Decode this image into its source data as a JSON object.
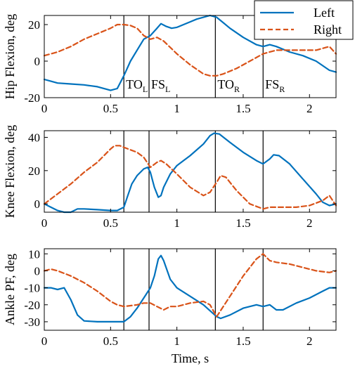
{
  "colors": {
    "left": "#0072BD",
    "right": "#D95319",
    "event_line": "#000000",
    "axes": "#000000"
  },
  "chart_data": [
    {
      "type": "line",
      "ylabel": "Hip Flexion, deg",
      "xlim": [
        0,
        2.2
      ],
      "ylim": [
        -20,
        25
      ],
      "xticks": [
        0,
        0.5,
        1,
        1.5,
        2
      ],
      "yticks": [
        -20,
        0,
        20
      ],
      "events": [
        {
          "x": 0.6,
          "label": "TO",
          "sub": "L"
        },
        {
          "x": 0.79,
          "label": "FS",
          "sub": "L"
        },
        {
          "x": 1.29,
          "label": "TO",
          "sub": "R"
        },
        {
          "x": 1.65,
          "label": "FS",
          "sub": "R"
        }
      ],
      "legend": {
        "placement": "top-right",
        "entries": [
          "Left",
          "Right"
        ]
      },
      "series": [
        {
          "name": "Left",
          "style": "solid",
          "points": [
            [
              0,
              -10
            ],
            [
              0.05,
              -11
            ],
            [
              0.1,
              -12
            ],
            [
              0.2,
              -12.5
            ],
            [
              0.3,
              -13
            ],
            [
              0.4,
              -14
            ],
            [
              0.5,
              -16
            ],
            [
              0.55,
              -15
            ],
            [
              0.6,
              -8
            ],
            [
              0.65,
              0
            ],
            [
              0.7,
              6
            ],
            [
              0.75,
              12
            ],
            [
              0.8,
              14
            ],
            [
              0.85,
              18
            ],
            [
              0.88,
              20.5
            ],
            [
              0.92,
              19
            ],
            [
              0.96,
              18
            ],
            [
              1.0,
              18.5
            ],
            [
              1.05,
              20
            ],
            [
              1.1,
              21.5
            ],
            [
              1.15,
              23
            ],
            [
              1.2,
              24
            ],
            [
              1.25,
              25
            ],
            [
              1.3,
              24
            ],
            [
              1.35,
              21
            ],
            [
              1.4,
              18
            ],
            [
              1.5,
              13
            ],
            [
              1.6,
              9
            ],
            [
              1.65,
              8
            ],
            [
              1.7,
              9
            ],
            [
              1.75,
              8
            ],
            [
              1.85,
              5
            ],
            [
              1.95,
              3
            ],
            [
              2.05,
              0
            ],
            [
              2.15,
              -5
            ],
            [
              2.2,
              -6
            ]
          ]
        },
        {
          "name": "Right",
          "style": "dashed",
          "points": [
            [
              0,
              3
            ],
            [
              0.05,
              4
            ],
            [
              0.1,
              5
            ],
            [
              0.2,
              8
            ],
            [
              0.3,
              12
            ],
            [
              0.4,
              15
            ],
            [
              0.5,
              18
            ],
            [
              0.55,
              20
            ],
            [
              0.6,
              20
            ],
            [
              0.65,
              19.5
            ],
            [
              0.7,
              18
            ],
            [
              0.75,
              14
            ],
            [
              0.8,
              12
            ],
            [
              0.85,
              13
            ],
            [
              0.9,
              11
            ],
            [
              1.0,
              4
            ],
            [
              1.1,
              -2
            ],
            [
              1.2,
              -7
            ],
            [
              1.25,
              -8
            ],
            [
              1.3,
              -8
            ],
            [
              1.35,
              -7
            ],
            [
              1.45,
              -4
            ],
            [
              1.55,
              0
            ],
            [
              1.65,
              4
            ],
            [
              1.75,
              6
            ],
            [
              1.85,
              6
            ],
            [
              1.95,
              6
            ],
            [
              2.05,
              6
            ],
            [
              2.1,
              7
            ],
            [
              2.15,
              8
            ],
            [
              2.2,
              4
            ]
          ]
        }
      ]
    },
    {
      "type": "line",
      "ylabel": "Knee Flexion, deg",
      "xlim": [
        0,
        2.2
      ],
      "ylim": [
        -5,
        44
      ],
      "xticks": [
        0,
        0.5,
        1,
        1.5,
        2
      ],
      "yticks": [
        0,
        20,
        40
      ],
      "events": [
        {
          "x": 0.6
        },
        {
          "x": 0.79
        },
        {
          "x": 1.29
        },
        {
          "x": 1.65
        }
      ],
      "series": [
        {
          "name": "Left",
          "style": "solid",
          "points": [
            [
              0,
              0
            ],
            [
              0.05,
              -2
            ],
            [
              0.1,
              -4
            ],
            [
              0.15,
              -5
            ],
            [
              0.2,
              -5
            ],
            [
              0.25,
              -3
            ],
            [
              0.3,
              -3
            ],
            [
              0.4,
              -3.5
            ],
            [
              0.5,
              -4
            ],
            [
              0.55,
              -4
            ],
            [
              0.6,
              -2
            ],
            [
              0.63,
              5
            ],
            [
              0.66,
              12
            ],
            [
              0.7,
              17
            ],
            [
              0.75,
              21
            ],
            [
              0.78,
              22
            ],
            [
              0.8,
              19
            ],
            [
              0.83,
              10
            ],
            [
              0.86,
              4
            ],
            [
              0.88,
              5
            ],
            [
              0.9,
              10
            ],
            [
              0.95,
              18
            ],
            [
              1.0,
              23
            ],
            [
              1.1,
              29
            ],
            [
              1.2,
              36
            ],
            [
              1.25,
              41
            ],
            [
              1.28,
              42.5
            ],
            [
              1.32,
              42
            ],
            [
              1.4,
              37
            ],
            [
              1.5,
              31
            ],
            [
              1.6,
              26
            ],
            [
              1.65,
              24
            ],
            [
              1.7,
              27
            ],
            [
              1.73,
              29.5
            ],
            [
              1.77,
              29
            ],
            [
              1.85,
              24
            ],
            [
              1.95,
              15
            ],
            [
              2.05,
              6
            ],
            [
              2.1,
              1
            ],
            [
              2.15,
              -1
            ],
            [
              2.2,
              0
            ]
          ]
        },
        {
          "name": "Right",
          "style": "dashed",
          "points": [
            [
              0,
              0
            ],
            [
              0.05,
              3
            ],
            [
              0.1,
              6
            ],
            [
              0.2,
              12
            ],
            [
              0.3,
              19
            ],
            [
              0.4,
              25
            ],
            [
              0.45,
              29
            ],
            [
              0.5,
              33
            ],
            [
              0.53,
              35
            ],
            [
              0.57,
              35
            ],
            [
              0.6,
              34
            ],
            [
              0.7,
              31
            ],
            [
              0.75,
              28
            ],
            [
              0.8,
              22
            ],
            [
              0.85,
              25
            ],
            [
              0.88,
              26
            ],
            [
              0.92,
              24
            ],
            [
              1.0,
              18
            ],
            [
              1.1,
              10
            ],
            [
              1.2,
              5
            ],
            [
              1.25,
              7
            ],
            [
              1.3,
              13
            ],
            [
              1.33,
              17
            ],
            [
              1.37,
              16
            ],
            [
              1.45,
              8
            ],
            [
              1.55,
              0
            ],
            [
              1.65,
              -3
            ],
            [
              1.7,
              -2
            ],
            [
              1.8,
              -2
            ],
            [
              1.9,
              -2
            ],
            [
              2.0,
              -1
            ],
            [
              2.1,
              2
            ],
            [
              2.15,
              5
            ],
            [
              2.2,
              -1
            ]
          ]
        }
      ]
    },
    {
      "type": "line",
      "ylabel": "Ankle PF, deg",
      "xlabel": "Time, s",
      "xlim": [
        0,
        2.2
      ],
      "ylim": [
        -35,
        13
      ],
      "xticks": [
        0,
        0.5,
        1,
        1.5,
        2
      ],
      "yticks": [
        -30,
        -20,
        -10,
        0,
        10
      ],
      "events": [
        {
          "x": 0.6
        },
        {
          "x": 0.79
        },
        {
          "x": 1.29
        },
        {
          "x": 1.65
        }
      ],
      "series": [
        {
          "name": "Left",
          "style": "solid",
          "points": [
            [
              0,
              -10
            ],
            [
              0.05,
              -10
            ],
            [
              0.1,
              -11
            ],
            [
              0.15,
              -10
            ],
            [
              0.2,
              -17
            ],
            [
              0.25,
              -26
            ],
            [
              0.3,
              -29.5
            ],
            [
              0.4,
              -30
            ],
            [
              0.5,
              -30
            ],
            [
              0.6,
              -30
            ],
            [
              0.65,
              -27
            ],
            [
              0.7,
              -22
            ],
            [
              0.75,
              -16
            ],
            [
              0.8,
              -10
            ],
            [
              0.83,
              -3
            ],
            [
              0.86,
              7
            ],
            [
              0.88,
              9
            ],
            [
              0.9,
              6
            ],
            [
              0.95,
              -5
            ],
            [
              1.0,
              -10
            ],
            [
              1.1,
              -15
            ],
            [
              1.2,
              -20
            ],
            [
              1.3,
              -27
            ],
            [
              1.33,
              -28
            ],
            [
              1.4,
              -26
            ],
            [
              1.5,
              -22
            ],
            [
              1.6,
              -20
            ],
            [
              1.65,
              -21
            ],
            [
              1.7,
              -20
            ],
            [
              1.75,
              -23
            ],
            [
              1.8,
              -23
            ],
            [
              1.9,
              -19
            ],
            [
              2.0,
              -16
            ],
            [
              2.1,
              -12
            ],
            [
              2.15,
              -10
            ],
            [
              2.2,
              -10
            ]
          ]
        },
        {
          "name": "Right",
          "style": "dashed",
          "points": [
            [
              0,
              0
            ],
            [
              0.05,
              1
            ],
            [
              0.1,
              0
            ],
            [
              0.2,
              -3
            ],
            [
              0.3,
              -7
            ],
            [
              0.4,
              -12
            ],
            [
              0.5,
              -18
            ],
            [
              0.55,
              -20
            ],
            [
              0.6,
              -21
            ],
            [
              0.7,
              -20
            ],
            [
              0.75,
              -19
            ],
            [
              0.8,
              -19
            ],
            [
              0.85,
              -21
            ],
            [
              0.9,
              -23
            ],
            [
              0.95,
              -21
            ],
            [
              1.0,
              -21
            ],
            [
              1.1,
              -19
            ],
            [
              1.2,
              -18
            ],
            [
              1.25,
              -20
            ],
            [
              1.3,
              -27
            ],
            [
              1.4,
              -15
            ],
            [
              1.5,
              -3
            ],
            [
              1.6,
              7
            ],
            [
              1.65,
              10
            ],
            [
              1.7,
              6
            ],
            [
              1.75,
              5
            ],
            [
              1.85,
              4
            ],
            [
              1.95,
              2
            ],
            [
              2.05,
              0
            ],
            [
              2.15,
              -1
            ],
            [
              2.2,
              0
            ]
          ]
        }
      ]
    }
  ]
}
